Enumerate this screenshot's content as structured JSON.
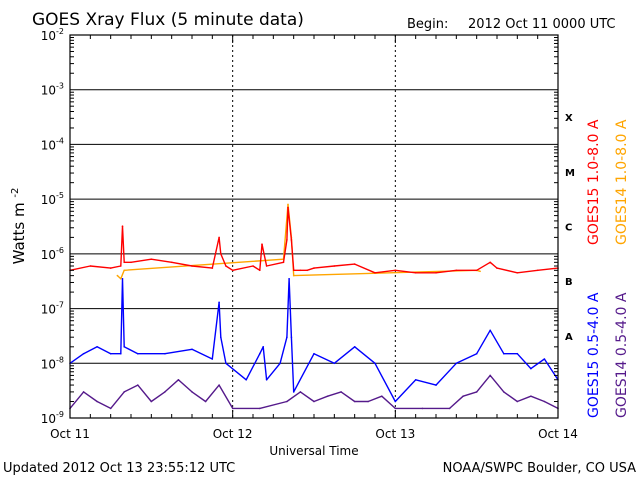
{
  "header": {
    "title": "GOES Xray Flux (5 minute data)",
    "begin_label": "Begin:",
    "begin_value": "2012 Oct 11 0000 UTC"
  },
  "footer": {
    "updated": "Updated 2012 Oct 13 23:55:12 UTC",
    "credit": "NOAA/SWPC Boulder, CO USA"
  },
  "chart_data": {
    "type": "line",
    "title": "GOES Xray Flux (5 minute data)",
    "xlabel": "Universal Time",
    "ylabel": "Watts m",
    "ylabel_superscript": "-2",
    "y_scale": "log",
    "ylim": [
      1e-09,
      0.01
    ],
    "xlim": [
      "2012-10-11T00:00",
      "2012-10-14T00:00"
    ],
    "grid": true,
    "x_ticks": [
      {
        "t": "2012-10-11T00:00",
        "label": "Oct 11"
      },
      {
        "t": "2012-10-12T00:00",
        "label": "Oct 12"
      },
      {
        "t": "2012-10-13T00:00",
        "label": "Oct 13"
      },
      {
        "t": "2012-10-14T00:00",
        "label": "Oct 14"
      }
    ],
    "y_ticks": [
      {
        "v": 0.01,
        "base": "10",
        "exp": "-2"
      },
      {
        "v": 0.001,
        "base": "10",
        "exp": "-3"
      },
      {
        "v": 0.0001,
        "base": "10",
        "exp": "-4"
      },
      {
        "v": 1e-05,
        "base": "10",
        "exp": "-5"
      },
      {
        "v": 1e-06,
        "base": "10",
        "exp": "-6"
      },
      {
        "v": 1e-07,
        "base": "10",
        "exp": "-7"
      },
      {
        "v": 1e-08,
        "base": "10",
        "exp": "-8"
      },
      {
        "v": 1e-09,
        "base": "10",
        "exp": "-9"
      }
    ],
    "flare_classes": [
      {
        "label": "X",
        "v_low": 0.0001,
        "v_high": 0.001
      },
      {
        "label": "M",
        "v_low": 1e-05,
        "v_high": 0.0001
      },
      {
        "label": "C",
        "v_low": 1e-06,
        "v_high": 1e-05
      },
      {
        "label": "B",
        "v_low": 1e-07,
        "v_high": 1e-06
      },
      {
        "label": "A",
        "v_low": 1e-08,
        "v_high": 1e-07
      }
    ],
    "legend_placement": "right, vertical",
    "series": [
      {
        "name": "GOES15 1.0-8.0 A",
        "color": "#ff0000",
        "x": [
          "2012-10-11T00:00",
          "2012-10-11T03:00",
          "2012-10-11T06:00",
          "2012-10-11T07:30",
          "2012-10-11T07:45",
          "2012-10-11T08:00",
          "2012-10-11T09:00",
          "2012-10-11T12:00",
          "2012-10-11T15:00",
          "2012-10-11T18:00",
          "2012-10-11T21:00",
          "2012-10-11T22:00",
          "2012-10-11T22:15",
          "2012-10-11T23:00",
          "2012-10-12T00:00",
          "2012-10-12T03:00",
          "2012-10-12T04:00",
          "2012-10-12T04:20",
          "2012-10-12T05:00",
          "2012-10-12T07:30",
          "2012-10-12T08:00",
          "2012-10-12T08:10",
          "2012-10-12T08:40",
          "2012-10-12T09:00",
          "2012-10-12T10:00",
          "2012-10-12T11:00",
          "2012-10-12T12:00",
          "2012-10-12T15:00",
          "2012-10-12T18:00",
          "2012-10-12T21:00",
          "2012-10-13T00:00",
          "2012-10-13T03:00",
          "2012-10-13T06:00",
          "2012-10-13T09:00",
          "2012-10-13T12:00",
          "2012-10-13T14:00",
          "2012-10-13T15:00",
          "2012-10-13T18:00",
          "2012-10-13T21:00",
          "2012-10-14T00:00"
        ],
        "y": [
          5e-07,
          6e-07,
          5.5e-07,
          6e-07,
          3.2e-06,
          7e-07,
          7e-07,
          8e-07,
          7e-07,
          6e-07,
          5.5e-07,
          2e-06,
          1e-06,
          6e-07,
          5e-07,
          6e-07,
          5e-07,
          1.5e-06,
          6e-07,
          7e-07,
          1.8e-06,
          7e-06,
          1.8e-06,
          5e-07,
          5e-07,
          5e-07,
          5.5e-07,
          6e-07,
          6.5e-07,
          4.5e-07,
          5e-07,
          4.5e-07,
          4.5e-07,
          5e-07,
          5e-07,
          7e-07,
          5.5e-07,
          4.5e-07,
          5e-07,
          5.5e-07
        ]
      },
      {
        "name": "GOES14 1.0-8.0 A",
        "color": "#ffa500",
        "x": [
          "2012-10-11T07:00",
          "2012-10-11T07:30",
          "2012-10-11T08:00",
          "2012-10-12T07:30",
          "2012-10-12T08:10",
          "2012-10-12T08:40",
          "2012-10-12T09:00",
          "2012-10-13T12:00",
          "2012-10-13T12:30"
        ],
        "y": [
          4e-07,
          3.5e-07,
          5e-07,
          8e-07,
          8e-06,
          2e-06,
          4e-07,
          5e-07,
          4.8e-07
        ]
      },
      {
        "name": "GOES15 0.5-4.0 A",
        "color": "#0000ff",
        "x": [
          "2012-10-11T00:00",
          "2012-10-11T02:00",
          "2012-10-11T04:00",
          "2012-10-11T06:00",
          "2012-10-11T07:30",
          "2012-10-11T07:45",
          "2012-10-11T08:00",
          "2012-10-11T10:00",
          "2012-10-11T14:00",
          "2012-10-11T18:00",
          "2012-10-11T21:00",
          "2012-10-11T22:00",
          "2012-10-11T22:15",
          "2012-10-11T23:00",
          "2012-10-12T02:00",
          "2012-10-12T04:00",
          "2012-10-12T04:30",
          "2012-10-12T05:00",
          "2012-10-12T07:00",
          "2012-10-12T08:00",
          "2012-10-12T08:20",
          "2012-10-12T08:40",
          "2012-10-12T09:00",
          "2012-10-12T12:00",
          "2012-10-12T15:00",
          "2012-10-12T18:00",
          "2012-10-12T21:00",
          "2012-10-13T00:00",
          "2012-10-13T03:00",
          "2012-10-13T06:00",
          "2012-10-13T09:00",
          "2012-10-13T12:00",
          "2012-10-13T14:00",
          "2012-10-13T16:00",
          "2012-10-13T18:00",
          "2012-10-13T20:00",
          "2012-10-13T22:00",
          "2012-10-14T00:00"
        ],
        "y": [
          1e-08,
          1.5e-08,
          2e-08,
          1.5e-08,
          1.5e-08,
          3.5e-07,
          2e-08,
          1.5e-08,
          1.5e-08,
          1.8e-08,
          1.2e-08,
          1.3e-07,
          3e-08,
          1e-08,
          5e-09,
          1.5e-08,
          2e-08,
          5e-09,
          1e-08,
          3e-08,
          3.5e-07,
          3e-08,
          3e-09,
          1.5e-08,
          1e-08,
          2e-08,
          1e-08,
          2e-09,
          5e-09,
          4e-09,
          1e-08,
          1.5e-08,
          4e-08,
          1.5e-08,
          1.5e-08,
          8e-09,
          1.2e-08,
          5e-09
        ]
      },
      {
        "name": "GOES14 0.5-4.0 A",
        "color": "#551a8b",
        "x": [
          "2012-10-11T00:00",
          "2012-10-11T02:00",
          "2012-10-11T04:00",
          "2012-10-11T06:00",
          "2012-10-11T08:00",
          "2012-10-11T10:00",
          "2012-10-11T12:00",
          "2012-10-11T14:00",
          "2012-10-11T16:00",
          "2012-10-11T18:00",
          "2012-10-11T20:00",
          "2012-10-11T22:00",
          "2012-10-12T00:00",
          "2012-10-12T04:00",
          "2012-10-12T08:00",
          "2012-10-12T10:00",
          "2012-10-12T12:00",
          "2012-10-12T14:00",
          "2012-10-12T16:00",
          "2012-10-12T18:00",
          "2012-10-12T20:00",
          "2012-10-12T22:00",
          "2012-10-13T00:00",
          "2012-10-13T04:00",
          "2012-10-13T08:00",
          "2012-10-13T10:00",
          "2012-10-13T12:00",
          "2012-10-13T14:00",
          "2012-10-13T16:00",
          "2012-10-13T18:00",
          "2012-10-13T20:00",
          "2012-10-13T22:00",
          "2012-10-14T00:00"
        ],
        "y": [
          1.5e-09,
          3e-09,
          2e-09,
          1.5e-09,
          3e-09,
          4e-09,
          2e-09,
          3e-09,
          5e-09,
          3e-09,
          2e-09,
          4e-09,
          1.5e-09,
          1.5e-09,
          2e-09,
          3e-09,
          2e-09,
          2.5e-09,
          3e-09,
          2e-09,
          2e-09,
          2.5e-09,
          1.5e-09,
          1.5e-09,
          1.5e-09,
          2.5e-09,
          3e-09,
          6e-09,
          3e-09,
          2e-09,
          2.5e-09,
          2e-09,
          1.5e-09
        ]
      }
    ]
  }
}
